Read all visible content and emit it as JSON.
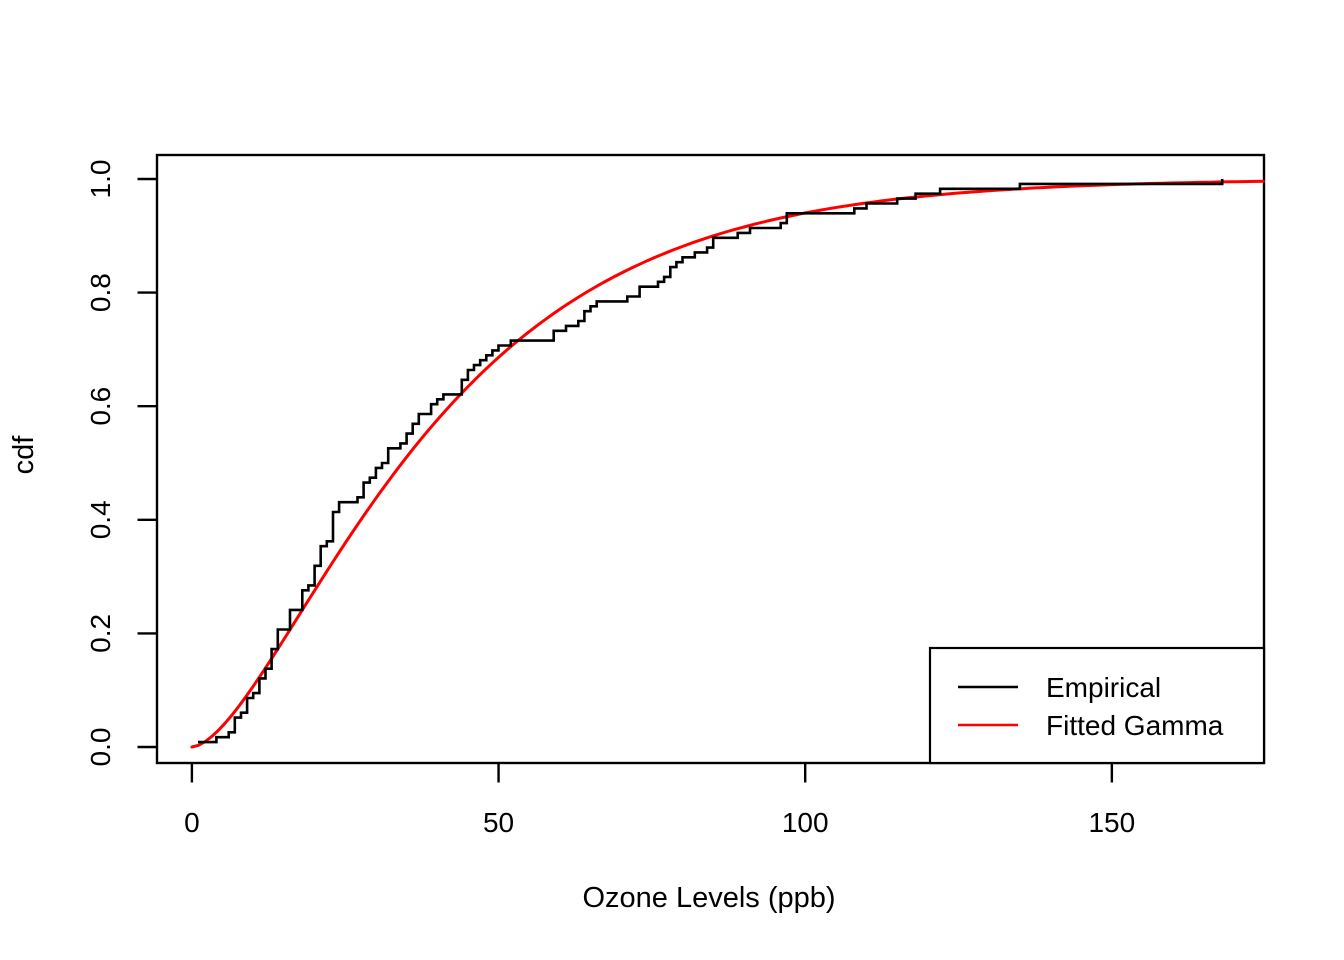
{
  "figure": {
    "background_color": "#ffffff",
    "foreground_color": "#000000"
  },
  "chart_data": {
    "type": "line",
    "title": "",
    "xlabel": "Ozone Levels (ppb)",
    "ylabel": "cdf",
    "xlim": [
      -5.7,
      174.7
    ],
    "ylim": [
      -0.028,
      1.042
    ],
    "x_tick_values": [
      0,
      50,
      100,
      150
    ],
    "x_tick_labels": [
      "0",
      "50",
      "100",
      "150"
    ],
    "y_tick_values": [
      0.0,
      0.2,
      0.4,
      0.6,
      0.8,
      1.0
    ],
    "y_tick_labels": [
      "0.0",
      "0.2",
      "0.4",
      "0.6",
      "0.8",
      "1.0"
    ],
    "grid": false,
    "legend_position": "bottomright",
    "series": [
      {
        "name": "Empirical",
        "kind": "ecdf_step",
        "color": "#000000",
        "n": 116,
        "sorted_values": [
          1,
          4,
          6,
          7,
          7,
          7,
          8,
          9,
          9,
          9,
          10,
          11,
          11,
          11,
          12,
          12,
          13,
          13,
          13,
          13,
          14,
          14,
          14,
          14,
          16,
          16,
          16,
          16,
          18,
          18,
          18,
          18,
          19,
          20,
          20,
          20,
          20,
          21,
          21,
          21,
          21,
          22,
          23,
          23,
          23,
          23,
          23,
          23,
          24,
          24,
          27,
          28,
          28,
          28,
          29,
          30,
          30,
          31,
          32,
          32,
          32,
          34,
          35,
          35,
          36,
          36,
          37,
          37,
          39,
          39,
          40,
          41,
          44,
          44,
          44,
          45,
          45,
          46,
          47,
          48,
          49,
          50,
          52,
          59,
          59,
          61,
          63,
          64,
          64,
          65,
          66,
          71,
          73,
          73,
          76,
          77,
          78,
          78,
          79,
          80,
          82,
          84,
          85,
          85,
          89,
          91,
          96,
          97,
          97,
          108,
          110,
          115,
          118,
          122,
          135,
          168
        ]
      },
      {
        "name": "Fitted Gamma",
        "kind": "gamma_cdf",
        "color": "#ff0000",
        "shape": 1.7087,
        "rate": 0.04056,
        "x_start": 0,
        "x_end": 174.7
      }
    ]
  },
  "legend": {
    "entries": [
      {
        "label": "Empirical",
        "color": "#000000"
      },
      {
        "label": "Fitted Gamma",
        "color": "#ff0000"
      }
    ]
  }
}
